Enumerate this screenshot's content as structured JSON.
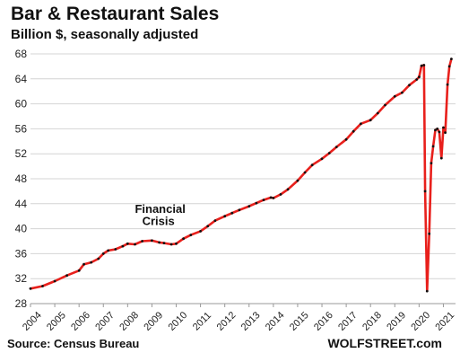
{
  "chart_data": {
    "type": "line",
    "title": "Bar & Restaurant Sales",
    "subtitle": "Billion $, seasonally adjusted",
    "ylim": [
      28,
      68
    ],
    "yticks": [
      28,
      32,
      36,
      40,
      44,
      48,
      52,
      56,
      60,
      64,
      68
    ],
    "xlim": [
      2004,
      2021.5
    ],
    "xticks": [
      "2004",
      "2005",
      "2006",
      "2007",
      "2008",
      "2009",
      "2010",
      "2011",
      "2012",
      "2013",
      "2014",
      "2015",
      "2016",
      "2017",
      "2018",
      "2019",
      "2020",
      "2021"
    ],
    "grid": "horizontal",
    "annotations": [
      {
        "text": "Financial",
        "x": 2008.3,
        "y": 42.5
      },
      {
        "text": "Crisis",
        "x": 2008.6,
        "y": 40.6
      }
    ],
    "series": [
      {
        "color": "#e8201c",
        "marker_color": "#111111",
        "points": [
          [
            2004.0,
            30.4
          ],
          [
            2004.5,
            30.8
          ],
          [
            2005.0,
            31.6
          ],
          [
            2005.5,
            32.5
          ],
          [
            2006.0,
            33.3
          ],
          [
            2006.2,
            34.3
          ],
          [
            2006.5,
            34.6
          ],
          [
            2006.8,
            35.2
          ],
          [
            2007.0,
            36.0
          ],
          [
            2007.2,
            36.5
          ],
          [
            2007.5,
            36.7
          ],
          [
            2007.8,
            37.2
          ],
          [
            2008.0,
            37.6
          ],
          [
            2008.3,
            37.5
          ],
          [
            2008.6,
            38.0
          ],
          [
            2009.0,
            38.1
          ],
          [
            2009.3,
            37.8
          ],
          [
            2009.5,
            37.7
          ],
          [
            2009.8,
            37.5
          ],
          [
            2010.0,
            37.6
          ],
          [
            2010.3,
            38.4
          ],
          [
            2010.6,
            39.0
          ],
          [
            2011.0,
            39.6
          ],
          [
            2011.3,
            40.4
          ],
          [
            2011.6,
            41.3
          ],
          [
            2012.0,
            42.0
          ],
          [
            2012.3,
            42.5
          ],
          [
            2012.6,
            43.0
          ],
          [
            2013.0,
            43.6
          ],
          [
            2013.3,
            44.1
          ],
          [
            2013.6,
            44.6
          ],
          [
            2013.9,
            45.0
          ],
          [
            2014.0,
            44.9
          ],
          [
            2014.3,
            45.5
          ],
          [
            2014.6,
            46.3
          ],
          [
            2015.0,
            47.7
          ],
          [
            2015.3,
            49.0
          ],
          [
            2015.6,
            50.2
          ],
          [
            2016.0,
            51.2
          ],
          [
            2016.3,
            52.1
          ],
          [
            2016.6,
            53.1
          ],
          [
            2017.0,
            54.3
          ],
          [
            2017.3,
            55.6
          ],
          [
            2017.6,
            56.8
          ],
          [
            2018.0,
            57.4
          ],
          [
            2018.3,
            58.5
          ],
          [
            2018.6,
            59.8
          ],
          [
            2019.0,
            61.2
          ],
          [
            2019.3,
            61.8
          ],
          [
            2019.6,
            63.0
          ],
          [
            2019.9,
            63.9
          ],
          [
            2020.0,
            64.3
          ],
          [
            2020.1,
            66.1
          ],
          [
            2020.2,
            66.2
          ],
          [
            2020.25,
            46.0
          ],
          [
            2020.33,
            30.0
          ],
          [
            2020.42,
            39.2
          ],
          [
            2020.5,
            50.5
          ],
          [
            2020.58,
            53.2
          ],
          [
            2020.67,
            55.8
          ],
          [
            2020.75,
            56.0
          ],
          [
            2020.83,
            55.5
          ],
          [
            2020.92,
            51.3
          ],
          [
            2021.0,
            56.2
          ],
          [
            2021.08,
            55.4
          ],
          [
            2021.17,
            63.1
          ],
          [
            2021.25,
            66.0
          ],
          [
            2021.33,
            67.2
          ]
        ]
      }
    ]
  },
  "footer": {
    "source": "Source: Census Bureau",
    "brand": "WOLFSTREET.com"
  }
}
